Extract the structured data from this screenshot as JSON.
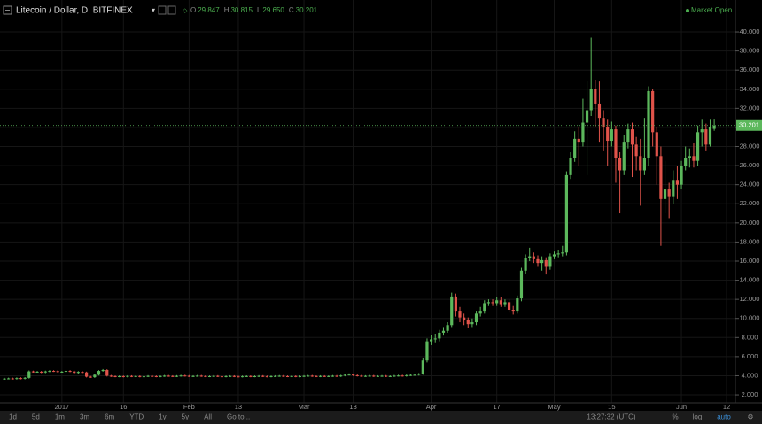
{
  "header": {
    "symbol": "Litecoin / Dollar, D, BITFINEX",
    "ohlc": [
      {
        "key": "O",
        "value": "29.847"
      },
      {
        "key": "H",
        "value": "30.815"
      },
      {
        "key": "L",
        "value": "29.650"
      },
      {
        "key": "C",
        "value": "30.201"
      }
    ],
    "status": "Market Open"
  },
  "chart_data": {
    "type": "candlestick",
    "up_color": "#5cb85c",
    "down_color": "#e0534a",
    "grid": true,
    "categories": [
      null,
      null,
      null,
      null,
      null,
      null,
      null,
      null,
      null,
      null,
      null,
      null,
      null,
      null,
      "2017",
      null,
      null,
      null,
      null,
      null,
      null,
      null,
      null,
      null,
      null,
      null,
      null,
      null,
      null,
      "16",
      null,
      null,
      null,
      null,
      null,
      null,
      null,
      null,
      null,
      null,
      null,
      null,
      null,
      null,
      null,
      "Feb",
      null,
      null,
      null,
      null,
      null,
      null,
      null,
      null,
      null,
      null,
      null,
      "13",
      null,
      null,
      null,
      null,
      null,
      null,
      null,
      null,
      null,
      null,
      null,
      null,
      null,
      null,
      null,
      "Mar",
      null,
      null,
      null,
      null,
      null,
      null,
      null,
      null,
      null,
      null,
      null,
      "13",
      null,
      null,
      null,
      null,
      null,
      null,
      null,
      null,
      null,
      null,
      null,
      null,
      null,
      null,
      null,
      null,
      null,
      null,
      "Apr",
      null,
      null,
      null,
      null,
      null,
      null,
      null,
      null,
      null,
      null,
      null,
      null,
      null,
      null,
      null,
      "17",
      null,
      null,
      null,
      null,
      null,
      null,
      null,
      null,
      null,
      null,
      null,
      null,
      null,
      "May",
      null,
      null,
      null,
      null,
      null,
      null,
      null,
      null,
      null,
      null,
      null,
      null,
      null,
      "15",
      null,
      null,
      null,
      null,
      null,
      null,
      null,
      null,
      null,
      null,
      null,
      null,
      null,
      null,
      null,
      null,
      "Jun",
      null,
      null,
      null,
      null,
      null,
      null,
      null,
      null,
      null,
      null,
      "12"
    ],
    "open": [
      3.66,
      3.7,
      3.72,
      3.68,
      3.75,
      3.7,
      3.78,
      4.45,
      4.4,
      4.42,
      4.35,
      4.45,
      4.5,
      4.48,
      4.4,
      4.42,
      4.5,
      4.45,
      4.3,
      4.4,
      4.35,
      3.9,
      3.85,
      4.1,
      4.5,
      4.6,
      4.0,
      3.95,
      3.92,
      3.95,
      3.9,
      3.97,
      3.93,
      3.96,
      3.91,
      3.94,
      3.98,
      3.95,
      3.92,
      3.96,
      4.0,
      3.97,
      3.94,
      3.98,
      4.02,
      3.99,
      3.95,
      3.97,
      4.0,
      3.96,
      3.93,
      3.95,
      3.98,
      3.94,
      3.91,
      3.95,
      3.97,
      3.93,
      3.9,
      3.94,
      3.96,
      3.92,
      3.95,
      3.98,
      3.94,
      3.91,
      3.95,
      3.97,
      3.99,
      3.95,
      3.93,
      3.96,
      3.92,
      3.95,
      3.98,
      4.0,
      3.96,
      3.93,
      3.97,
      3.94,
      3.96,
      3.99,
      3.95,
      4.02,
      4.1,
      4.15,
      4.05,
      4.0,
      3.96,
      3.98,
      4.0,
      3.95,
      3.97,
      3.99,
      3.94,
      3.96,
      4.0,
      4.02,
      3.98,
      4.05,
      4.08,
      4.1,
      4.2,
      5.6,
      7.6,
      7.8,
      7.9,
      8.5,
      8.7,
      9.3,
      12.3,
      10.8,
      10.1,
      9.8,
      9.4,
      9.6,
      10.5,
      10.8,
      11.6,
      11.7,
      11.6,
      11.9,
      11.5,
      11.7,
      10.9,
      10.8,
      12.1,
      15.0,
      16.3,
      16.5,
      16.2,
      15.8,
      16.1,
      15.4,
      16.5,
      16.7,
      16.8,
      16.9,
      25.0,
      26.8,
      28.8,
      28.5,
      30.5,
      31.8,
      34.0,
      32.5,
      31.0,
      30.0,
      28.6,
      29.8,
      26.8,
      25.5,
      28.5,
      29.8,
      28.2,
      27.0,
      25.5,
      26.8,
      33.8,
      29.5,
      27.0,
      22.5,
      23.5,
      22.8,
      24.5,
      24.0,
      26.0,
      26.8,
      27.0,
      26.5,
      29.5,
      29.8,
      28.2,
      29.85,
      null,
      null,
      null
    ],
    "high": [
      3.78,
      3.8,
      3.8,
      3.83,
      3.83,
      3.86,
      4.55,
      4.53,
      4.5,
      4.5,
      4.53,
      4.58,
      4.58,
      4.56,
      4.5,
      4.58,
      4.58,
      4.53,
      4.48,
      4.48,
      4.43,
      3.98,
      4.18,
      4.58,
      4.7,
      4.68,
      4.08,
      4.03,
      4.03,
      4.03,
      4.05,
      4.05,
      4.04,
      4.04,
      4.02,
      4.06,
      4.06,
      4.03,
      4.04,
      4.08,
      4.08,
      4.05,
      4.06,
      4.1,
      4.1,
      4.07,
      4.05,
      4.08,
      4.08,
      4.04,
      4.03,
      4.06,
      4.06,
      4.02,
      4.03,
      4.05,
      4.05,
      4.01,
      4.02,
      4.04,
      4.04,
      4.03,
      4.06,
      4.06,
      4.02,
      4.03,
      4.05,
      4.07,
      4.07,
      4.03,
      4.04,
      4.04,
      4.03,
      4.06,
      4.08,
      4.08,
      4.04,
      4.05,
      4.05,
      4.04,
      4.07,
      4.07,
      4.1,
      4.18,
      4.25,
      4.23,
      4.13,
      4.08,
      4.06,
      4.08,
      4.08,
      4.05,
      4.07,
      4.07,
      4.04,
      4.08,
      4.1,
      4.1,
      4.13,
      4.16,
      4.18,
      4.28,
      5.9,
      7.9,
      8.3,
      8.4,
      8.8,
      9.1,
      9.6,
      12.7,
      12.6,
      11.2,
      10.5,
      10.1,
      10.0,
      10.8,
      11.2,
      11.9,
      12.0,
      12.0,
      12.2,
      12.2,
      12.0,
      12.0,
      11.3,
      12.4,
      15.3,
      16.7,
      17.4,
      16.9,
      16.6,
      16.5,
      16.4,
      16.8,
      17.0,
      17.2,
      17.6,
      25.4,
      27.4,
      29.6,
      30.0,
      33.0,
      34.9,
      39.4,
      35.0,
      34.8,
      31.8,
      30.8,
      30.6,
      30.2,
      27.4,
      29.2,
      30.4,
      30.5,
      29.0,
      28.8,
      31.0,
      34.3,
      34.0,
      30.0,
      28.0,
      26.5,
      24.2,
      25.5,
      26.0,
      26.5,
      28.0,
      27.8,
      28.4,
      30.2,
      30.8,
      30.4,
      30.8,
      30.82,
      null,
      null,
      null
    ],
    "low": [
      3.58,
      3.62,
      3.6,
      3.6,
      3.62,
      3.62,
      3.7,
      4.32,
      4.32,
      4.27,
      4.27,
      4.37,
      4.4,
      4.32,
      4.32,
      4.34,
      4.37,
      4.22,
      4.22,
      4.27,
      3.82,
      3.77,
      3.77,
      4.02,
      4.42,
      3.92,
      3.87,
      3.84,
      3.84,
      3.82,
      3.82,
      3.85,
      3.85,
      3.83,
      3.83,
      3.86,
      3.87,
      3.84,
      3.84,
      3.88,
      3.89,
      3.86,
      3.86,
      3.9,
      3.91,
      3.87,
      3.87,
      3.89,
      3.88,
      3.85,
      3.85,
      3.87,
      3.86,
      3.83,
      3.83,
      3.87,
      3.85,
      3.82,
      3.82,
      3.86,
      3.84,
      3.84,
      3.87,
      3.86,
      3.83,
      3.83,
      3.87,
      3.89,
      3.87,
      3.85,
      3.85,
      3.84,
      3.84,
      3.87,
      3.9,
      3.88,
      3.85,
      3.85,
      3.86,
      3.86,
      3.88,
      3.87,
      3.87,
      3.94,
      4.02,
      3.97,
      3.92,
      3.88,
      3.88,
      3.9,
      3.87,
      3.87,
      3.89,
      3.86,
      3.86,
      3.88,
      3.92,
      3.9,
      3.9,
      3.97,
      4.0,
      4.02,
      4.1,
      5.4,
      7.2,
      7.5,
      7.6,
      8.2,
      8.5,
      9.1,
      10.2,
      9.6,
      9.3,
      9.0,
      9.1,
      9.3,
      10.2,
      10.5,
      11.3,
      11.3,
      11.3,
      11.2,
      11.2,
      10.6,
      10.4,
      10.5,
      11.8,
      14.7,
      16.0,
      15.8,
      15.4,
      15.0,
      14.6,
      15.1,
      16.2,
      16.4,
      16.5,
      16.6,
      24.6,
      26.4,
      26.0,
      28.0,
      25.0,
      31.2,
      30.0,
      28.5,
      27.5,
      26.0,
      28.0,
      24.2,
      21.0,
      25.0,
      27.8,
      24.8,
      25.5,
      21.8,
      25.0,
      26.0,
      28.0,
      24.0,
      17.6,
      21.0,
      20.5,
      22.0,
      22.5,
      23.5,
      25.5,
      25.8,
      25.8,
      26.0,
      28.0,
      27.5,
      28.0,
      29.65,
      null,
      null,
      null
    ],
    "close": [
      3.7,
      3.72,
      3.68,
      3.75,
      3.7,
      3.78,
      4.45,
      4.4,
      4.42,
      4.35,
      4.45,
      4.5,
      4.48,
      4.4,
      4.42,
      4.5,
      4.45,
      4.3,
      4.4,
      4.35,
      3.9,
      3.85,
      4.1,
      4.5,
      4.6,
      4.0,
      3.95,
      3.92,
      3.95,
      3.9,
      3.97,
      3.93,
      3.96,
      3.91,
      3.94,
      3.98,
      3.95,
      3.92,
      3.96,
      4.0,
      3.97,
      3.94,
      3.98,
      4.02,
      3.99,
      3.95,
      3.97,
      4.0,
      3.96,
      3.93,
      3.95,
      3.98,
      3.94,
      3.91,
      3.95,
      3.97,
      3.93,
      3.9,
      3.94,
      3.96,
      3.92,
      3.95,
      3.98,
      3.94,
      3.91,
      3.95,
      3.97,
      3.99,
      3.95,
      3.93,
      3.96,
      3.92,
      3.95,
      3.98,
      4.0,
      3.96,
      3.93,
      3.97,
      3.94,
      3.96,
      3.99,
      3.95,
      4.02,
      4.1,
      4.15,
      4.05,
      4.0,
      3.96,
      3.98,
      4.0,
      3.95,
      3.97,
      3.99,
      3.94,
      3.96,
      4.0,
      4.02,
      3.98,
      4.05,
      4.08,
      4.1,
      4.2,
      5.6,
      7.6,
      7.8,
      7.9,
      8.5,
      8.7,
      9.3,
      12.3,
      10.8,
      10.1,
      9.8,
      9.4,
      9.6,
      10.5,
      10.8,
      11.6,
      11.7,
      11.6,
      11.9,
      11.5,
      11.7,
      10.9,
      10.8,
      12.1,
      15.0,
      16.3,
      16.5,
      16.2,
      15.8,
      16.1,
      15.4,
      16.5,
      16.7,
      16.8,
      16.9,
      25.0,
      26.8,
      28.8,
      28.5,
      30.5,
      31.8,
      34.0,
      32.5,
      31.0,
      30.0,
      28.6,
      29.8,
      26.8,
      25.5,
      28.5,
      29.8,
      28.2,
      27.0,
      25.5,
      26.8,
      33.8,
      29.5,
      27.0,
      22.5,
      23.5,
      22.8,
      24.5,
      24.0,
      26.0,
      26.8,
      27.0,
      26.5,
      29.5,
      29.8,
      28.2,
      30.0,
      30.2,
      null,
      null,
      null
    ],
    "ylim": [
      1.17,
      43.34
    ],
    "yticks": [
      {
        "value": 2,
        "label": "2.000"
      },
      {
        "value": 4,
        "label": "4.000"
      },
      {
        "value": 6,
        "label": "6.000"
      },
      {
        "value": 8,
        "label": "8.000"
      },
      {
        "value": 10,
        "label": "10.000"
      },
      {
        "value": 12,
        "label": "12.000"
      },
      {
        "value": 14,
        "label": "14.000"
      },
      {
        "value": 16,
        "label": "16.000"
      },
      {
        "value": 18,
        "label": "18.000"
      },
      {
        "value": 20,
        "label": "20.000"
      },
      {
        "value": 22,
        "label": "22.000"
      },
      {
        "value": 24,
        "label": "24.000"
      },
      {
        "value": 26,
        "label": "26.000"
      },
      {
        "value": 28,
        "label": "28.000"
      },
      {
        "value": 30,
        "label": "30.000"
      },
      {
        "value": 32,
        "label": "32.000"
      },
      {
        "value": 34,
        "label": "34.000"
      },
      {
        "value": 36,
        "label": "36.000"
      },
      {
        "value": 38,
        "label": "38.000"
      },
      {
        "value": 40,
        "label": "40.000"
      }
    ],
    "last_price": {
      "value": 30.201,
      "label": "30.201"
    }
  },
  "toolbar": {
    "ranges": [
      "1d",
      "5d",
      "1m",
      "3m",
      "6m",
      "YTD",
      "1y",
      "5y",
      "All"
    ],
    "goto": "Go to...",
    "time": "13:27:32 (UTC)",
    "options": [
      "%",
      "log",
      "auto"
    ]
  }
}
